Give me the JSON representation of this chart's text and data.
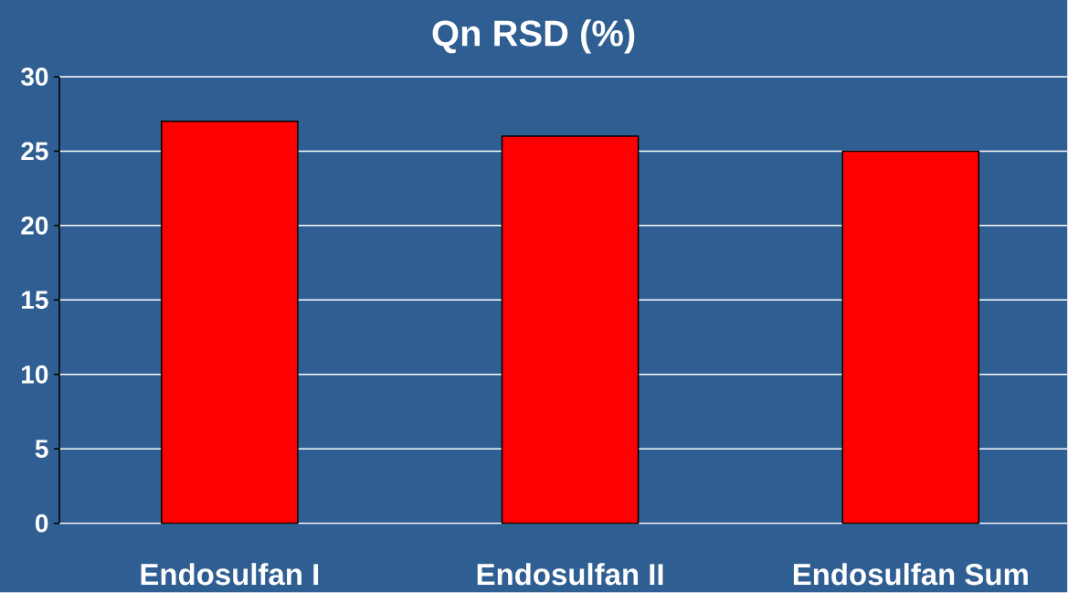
{
  "chart_data": {
    "type": "bar",
    "title": "Qn RSD (%)",
    "categories": [
      "Endosulfan I",
      "Endosulfan II",
      "Endosulfan Sum"
    ],
    "values": [
      27,
      26,
      25
    ],
    "color": "#ff0000",
    "ylim": [
      0,
      30
    ],
    "yticks": [
      0,
      5,
      10,
      15,
      20,
      25,
      30
    ],
    "grid": "y"
  }
}
